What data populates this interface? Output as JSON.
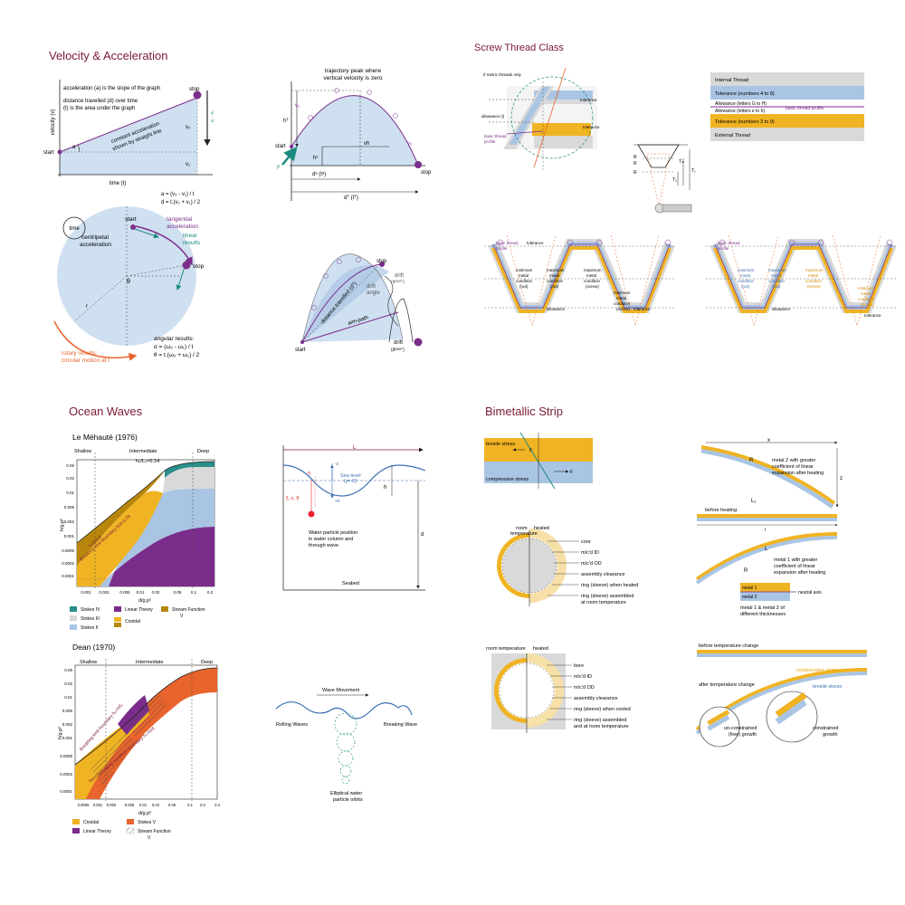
{
  "sections": {
    "velocity": "Velocity & Acceleration",
    "screw": "Screw Thread Class",
    "ocean": "Ocean Waves",
    "bimetal": "Bimetallic Strip"
  },
  "colors": {
    "title": "#7a1a33",
    "purple": "#7b2d8b",
    "teal": "#1a8a7e",
    "orange": "#e8642c",
    "blue": "#a9c5e3",
    "lightblue": "#cfe0f1",
    "yellow": "#f0b323",
    "grey": "#c8c8c8",
    "brown": "#b8860b",
    "darkpurple": "#6a2a86"
  },
  "vel_graph": {
    "ylabel": "velocity (v)",
    "xlabel": "time (t)",
    "text1": "acceleration (a) is the slope of the graph",
    "text2a": "distance travelled (d) over time",
    "text2b": "(t) is the area under the graph",
    "diag1": "constant acceleration",
    "diag2": "shown by straight line",
    "start": "start",
    "stop": "stop",
    "a": "a",
    "v2": "v₂",
    "v1": "v₁",
    "v2v1": "v₂ - v₁",
    "f1": "a = (v₂ - v₁) / t",
    "f2": "d = t.(v₂ + v₁) / 2"
  },
  "traj": {
    "t1": "trajectory peak where",
    "t2": "vertical velocity is zero",
    "start": "start",
    "stop": "stop",
    "v1": "v₁",
    "v2": "v₂",
    "F": "F",
    "h": "hᵀ",
    "h2": "hˢ",
    "vh": "vh",
    "d1": "dᵃ (tᵃ)",
    "d2": "dᵀ (tᵀ)"
  },
  "circle": {
    "time": "time",
    "start": "start",
    "tang1": "tangential",
    "tang2": "acceleration",
    "lin1": "linear",
    "lin2": "results",
    "cent1": "centripetal",
    "cent2": "acceleration",
    "stop": "stop",
    "theta": "θ",
    "r": "r",
    "ang1": "angular results:",
    "ang2": "α = (ω₂ - ω₁) / t",
    "ang3": "θ = t.(ω₂ + ω₁) / 2",
    "rot1": "rotary results:",
    "rot2": "circular motion at r"
  },
  "drift": {
    "start": "start",
    "stop": "stop",
    "aim": "aim-path",
    "dist": "distance travelled (dᵀ)",
    "angle1": "drift",
    "angle2": "angle",
    "drift1": "drift",
    "drift2": "(dᴰᴿᴵᶠᵀ)",
    "drift3": "drift",
    "drift4": "(dᴰᴿᴵᶠᵀ)"
  },
  "screw": {
    "metric": "If metric threads only",
    "tol": "tolerance",
    "allow": "allowance (i)",
    "basic1": "basic thread",
    "basic2": "profile",
    "tol2": "tolerance",
    "legend": [
      {
        "label": "Internal Thread",
        "color": "#d9d9d9"
      },
      {
        "label": "Tolerance (numbers 4 to 8)",
        "color": "#a9c5e3"
      },
      {
        "label": "Allowance (letters G to H)",
        "color": "#ffffff"
      },
      {
        "label": "Allowance (letters e to h)",
        "color": "#ffffff"
      },
      {
        "label": "Tolerance (numbers 3 to 9)",
        "color": "#f0b323"
      },
      {
        "label": "External Thread",
        "color": "#d9d9d9"
      }
    ],
    "basic_profile": "basic thread profile",
    "R": "R",
    "T1": "T₁",
    "T2": "T₂",
    "Tm": "Tₘ",
    "min1": "minimum",
    "min2": "metal",
    "min3": "condition",
    "min4": "(nut)",
    "max1": "maximum",
    "max2": "metal",
    "max3": "condition",
    "max4": "(nut)",
    "maxs4": "(screw)",
    "mins4": "(screw)",
    "outside": "outside diameter (D)",
    "pitch": "pitch diameter (D)",
    "inside": "inside diameter (D)",
    "allowance": "allowance",
    "tolerance": "tolerance"
  },
  "lemehaute": {
    "title": "Le Méhauté (1976)",
    "shallow": "Shallow",
    "intermediate": "Intermediate",
    "deep": "Deep",
    "hl": "h₀/L₀=0.14",
    "ylabel": "h/g.p²",
    "xlabel": "d/g.p²",
    "yticks": [
      "0.05",
      "0.02",
      "0.01",
      "0.005",
      "0.002",
      "0.001",
      "0.0005",
      "0.0002",
      "0.0001"
    ],
    "xticks": [
      "0.001",
      "0.002",
      "0.005",
      "0.01",
      "0.02",
      "0.05",
      "0.1",
      "0.2"
    ],
    "break": "Breaking limit boundary h/d=0.78",
    "hd": "h=h,h/d",
    "wavelen": "",
    "legend": [
      {
        "label": "Stokes IV",
        "color": "#2a8f8a"
      },
      {
        "label": "Stokes III",
        "color": "#d9d9d9"
      },
      {
        "label": "Stokes II",
        "color": "#a9c5e3"
      },
      {
        "label": "Linear Theory",
        "color": "#7b2d8b"
      },
      {
        "label": "Stream Function",
        "color": "#b8860b"
      },
      {
        "label": "Cnoidal",
        "color": "#f0b323"
      }
    ],
    "sf_v": "V"
  },
  "dean": {
    "title": "Dean (1970)",
    "shallow": "Shallow",
    "intermediate": "Intermediate",
    "deep": "Deep",
    "ylabel": "h/g.p²",
    "xlabel": "d/g.p²",
    "yticks": [
      "0.05",
      "0.02",
      "0.01",
      "0.005",
      "0.002",
      "0.001",
      "0.0005",
      "0.0002",
      "0.0001"
    ],
    "xticks": [
      "0.0005",
      "0.001",
      "0.002",
      "0.005",
      "0.01",
      "0.02",
      "0.05",
      "0.1",
      "0.2",
      "0.4"
    ],
    "break": "Breaking limit boundary h₀=h/l₀",
    "nonbreak": "Non-damaging condition boundary h₀=h/d",
    "legend": [
      {
        "label": "Cnoidal",
        "color": "#f0b323"
      },
      {
        "label": "Stokes V",
        "color": "#e8642c"
      },
      {
        "label": "Linear Theory",
        "color": "#7b2d8b"
      },
      {
        "label": "Stream Function",
        "color": "#bbbbbb"
      }
    ],
    "sf_v": "V"
  },
  "waveprofile": {
    "L": "L",
    "sea": "Sea level",
    "seal": "(y=-/2)",
    "z": "-z",
    "zz": "+z",
    "h": "h",
    "d": "d",
    "nz": "η",
    "coords": "ξ, x, θ",
    "wp1": "Water particle position",
    "wp2": "in water column and",
    "wp3": "through wave",
    "seabed": "Seabed"
  },
  "orbits": {
    "move": "Wave Movement",
    "rolling": "Rolling Waves",
    "breaking": "Breaking Wave",
    "ell1": "Elliptical water",
    "ell2": "particle orbits"
  },
  "bim1": {
    "tensile": "tensile stress",
    "comp": "compressive stress",
    "F": "F"
  },
  "bim2": {
    "x": "x",
    "R": "R",
    "L1": "L₁",
    "z": "z",
    "m2a": "metal 2 with greater",
    "m2b": "coefficient of linear",
    "m2c": "expansion after heating",
    "before": "before heating",
    "L": "L",
    "l": "l",
    "m1a": "metal 1 with greater",
    "m1b": "coefficient of linear",
    "m1c": "expansion after heating",
    "metal1": "metal 1",
    "metal2": "metal 2",
    "neutral": "neutral axis",
    "diff1": "metal 1 & metal 2 of",
    "diff2": "different thicknesses"
  },
  "ring1": {
    "room": "room",
    "temp": "temperature",
    "heated": "heated",
    "labels": [
      "core",
      "m/c'd ID",
      "m/c'd OD",
      "assembly clearance",
      "ring (sleeve) when heated",
      "ring (sleeve) assembled",
      "at room temperature"
    ]
  },
  "ring2": {
    "room": "room temperature",
    "heated": "heated",
    "labels": [
      "bore",
      "m/c'd ID",
      "m/c'd OD",
      "assembly clearance",
      "ring (sleeve) when cooled",
      "ring (sleeve) assembled",
      "and at room temperature"
    ]
  },
  "bim3": {
    "before": "before temperature change",
    "comp": "compressive stress",
    "tens": "tensile stress",
    "after": "after temperature change",
    "unc1": "un-constrained",
    "unc2": "(free) growth",
    "con1": "constrained",
    "con2": "growth"
  }
}
